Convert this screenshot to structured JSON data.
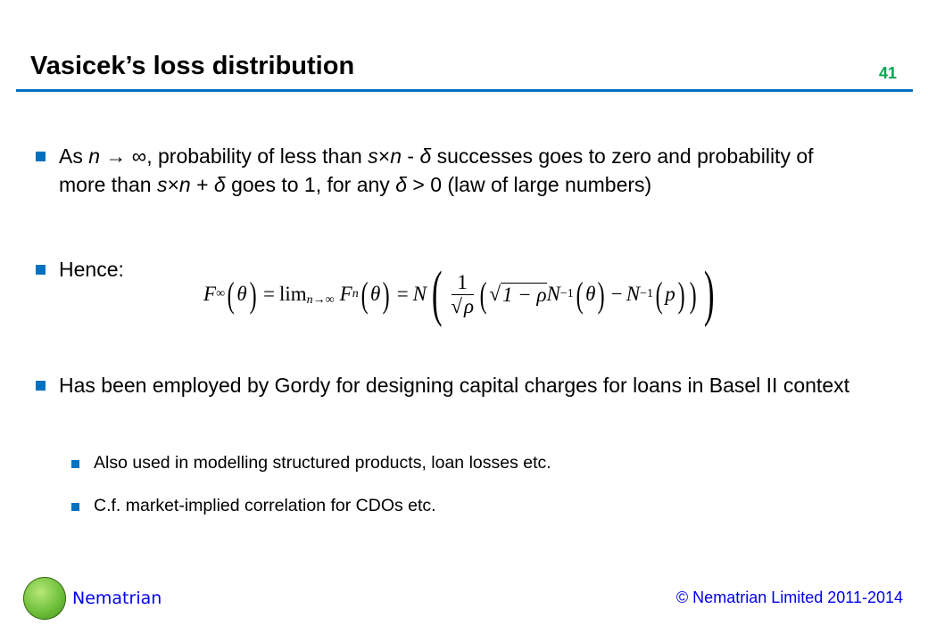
{
  "slide": {
    "title": "Vasicek’s loss distribution",
    "page_number": "41"
  },
  "bullets": [
    {
      "parts": [
        "As ",
        "n",
        " → ∞",
        ", probability of less than ",
        "s",
        "×",
        "n",
        " - ",
        "δ",
        " successes goes to zero and probability of more than ",
        "s",
        "×",
        "n",
        " + ",
        "δ",
        " goes to 1, for any ",
        "δ",
        " > 0 (law of large numbers)"
      ]
    },
    {
      "text": "Hence:"
    },
    {
      "text": "Has been employed by Gordy for designing capital charges for loans in Basel II context"
    }
  ],
  "sub_bullets": [
    "Also used in modelling structured products, loan losses etc.",
    "C.f. market-implied correlation for CDOs etc."
  ],
  "formula": {
    "F": "F",
    "inf": "∞",
    "theta": "θ",
    "eq": "=",
    "lim": "lim",
    "limsub": "n→∞",
    "n": "n",
    "N": "N",
    "one": "1",
    "rho": "ρ",
    "sqrt": "√",
    "oneminus": "1 − ρ",
    "inv": "−1",
    "minus": "−",
    "p": "p"
  },
  "footer": {
    "brand": "Nematrian",
    "copyright": "© Nematrian Limited 2011-2014"
  },
  "colors": {
    "accent": "#0070c0",
    "page_number": "#00a651",
    "footer": "#0000ee"
  }
}
